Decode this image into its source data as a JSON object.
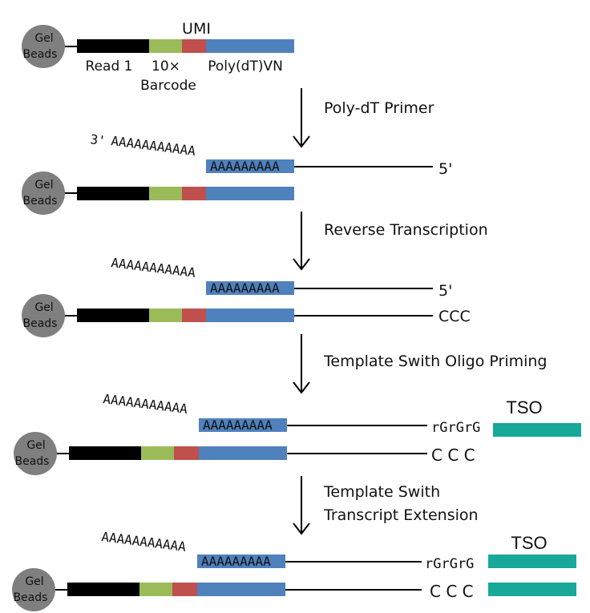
{
  "colors": {
    "read1": "#000000",
    "barcode": "#9bbb59",
    "umi": "#c0504d",
    "polydt": "#4f81bd",
    "tso": "#17a89a",
    "bead": "#7f7f7f"
  },
  "bead": {
    "line1": "Gel",
    "line2": "Beads"
  },
  "segments": {
    "umi": "UMI",
    "read1": "Read 1",
    "barcode_top": "10×",
    "barcode_bottom": "Barcode",
    "polydt": "Poly(dT)VN"
  },
  "steps": [
    "Poly-dT Primer",
    "Reverse Transcription",
    "Template Swith Oligo Priming",
    "Template Swith",
    "Transcript Extension"
  ],
  "stage2": {
    "three_prime": "3'",
    "polyA_tail": "AAAAAAAAAAA",
    "polyA_box": "AAAAAAAAA",
    "five_prime": "5'"
  },
  "stage3": {
    "polyA_tail": "AAAAAAAAAAA",
    "polyA_box": "AAAAAAAAA",
    "five_prime": "5'",
    "ccc": "CCC"
  },
  "stage4": {
    "polyA_tail": "AAAAAAAAAAA",
    "polyA_box": "AAAAAAAAA",
    "rg": "rGrGrG",
    "tso": "TSO",
    "ccc": "C C C"
  },
  "stage5": {
    "polyA_tail": "AAAAAAAAAAA",
    "polyA_box": "AAAAAAAAA",
    "rg": "rGrGrG",
    "tso": "TSO",
    "ccc": "C C C"
  }
}
